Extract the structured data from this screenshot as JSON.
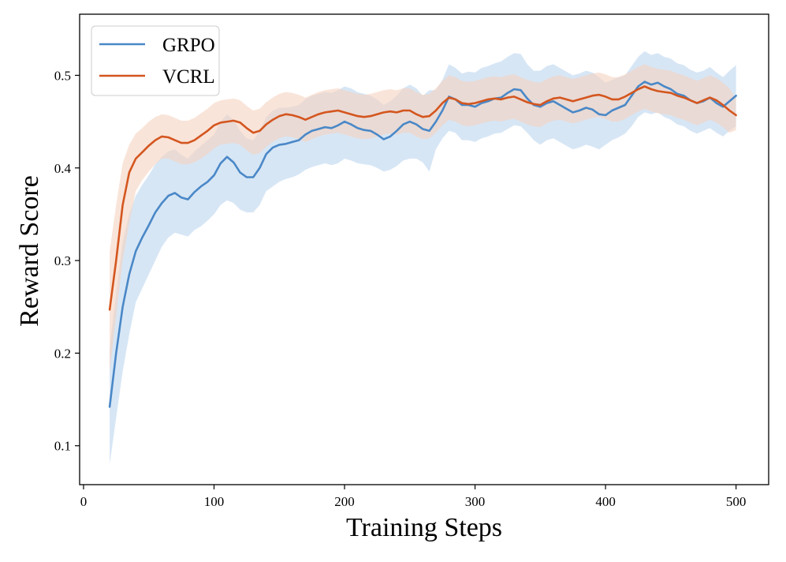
{
  "chart_data": {
    "type": "line",
    "title": "",
    "xlabel": "Training Steps",
    "ylabel": "Reward Score",
    "xlim": [
      -3,
      525
    ],
    "ylim": [
      0.058,
      0.566
    ],
    "xticks": [
      0,
      100,
      200,
      300,
      400,
      500
    ],
    "yticks": [
      0.1,
      0.2,
      0.3,
      0.4,
      0.5
    ],
    "xtick_labels": [
      "0",
      "100",
      "200",
      "300",
      "400",
      "500"
    ],
    "ytick_labels": [
      "0.1",
      "0.2",
      "0.3",
      "0.4",
      "0.5"
    ],
    "legend_position": "top-left",
    "grid": false,
    "series": [
      {
        "name": "GRPO",
        "color": "#4a88c7",
        "band_color": "#bcd5ee",
        "x": [
          20,
          25,
          30,
          35,
          40,
          45,
          50,
          55,
          60,
          65,
          70,
          75,
          80,
          85,
          90,
          95,
          100,
          105,
          110,
          115,
          120,
          125,
          130,
          135,
          140,
          145,
          150,
          155,
          160,
          165,
          170,
          175,
          180,
          185,
          190,
          195,
          200,
          205,
          210,
          215,
          220,
          225,
          230,
          235,
          240,
          245,
          250,
          255,
          260,
          265,
          270,
          275,
          280,
          285,
          290,
          295,
          300,
          305,
          310,
          315,
          320,
          325,
          330,
          335,
          340,
          345,
          350,
          355,
          360,
          365,
          370,
          375,
          380,
          385,
          390,
          395,
          400,
          405,
          410,
          415,
          420,
          425,
          430,
          435,
          440,
          445,
          450,
          455,
          460,
          465,
          470,
          475,
          480,
          485,
          490,
          495,
          500
        ],
        "y": [
          0.142,
          0.2,
          0.25,
          0.285,
          0.31,
          0.325,
          0.338,
          0.352,
          0.362,
          0.37,
          0.373,
          0.368,
          0.366,
          0.374,
          0.38,
          0.385,
          0.392,
          0.405,
          0.412,
          0.406,
          0.395,
          0.39,
          0.39,
          0.4,
          0.415,
          0.422,
          0.425,
          0.426,
          0.428,
          0.43,
          0.436,
          0.44,
          0.442,
          0.444,
          0.443,
          0.446,
          0.45,
          0.447,
          0.443,
          0.441,
          0.44,
          0.436,
          0.431,
          0.434,
          0.44,
          0.447,
          0.45,
          0.447,
          0.442,
          0.44,
          0.45,
          0.462,
          0.477,
          0.474,
          0.468,
          0.468,
          0.466,
          0.47,
          0.472,
          0.475,
          0.476,
          0.481,
          0.485,
          0.484,
          0.475,
          0.468,
          0.466,
          0.47,
          0.472,
          0.468,
          0.464,
          0.46,
          0.462,
          0.465,
          0.463,
          0.458,
          0.457,
          0.462,
          0.465,
          0.468,
          0.478,
          0.488,
          0.493,
          0.49,
          0.492,
          0.488,
          0.485,
          0.48,
          0.478,
          0.473,
          0.47,
          0.472,
          0.476,
          0.47,
          0.466,
          0.472,
          0.478
        ],
        "lower": [
          0.08,
          0.13,
          0.18,
          0.22,
          0.255,
          0.27,
          0.285,
          0.3,
          0.315,
          0.325,
          0.33,
          0.328,
          0.326,
          0.333,
          0.337,
          0.343,
          0.35,
          0.36,
          0.365,
          0.362,
          0.355,
          0.352,
          0.352,
          0.36,
          0.375,
          0.38,
          0.385,
          0.388,
          0.39,
          0.393,
          0.398,
          0.401,
          0.403,
          0.405,
          0.403,
          0.405,
          0.41,
          0.408,
          0.405,
          0.404,
          0.403,
          0.4,
          0.396,
          0.398,
          0.402,
          0.408,
          0.41,
          0.41,
          0.406,
          0.396,
          0.42,
          0.432,
          0.44,
          0.438,
          0.43,
          0.43,
          0.428,
          0.432,
          0.434,
          0.437,
          0.438,
          0.442,
          0.446,
          0.445,
          0.438,
          0.43,
          0.425,
          0.43,
          0.432,
          0.428,
          0.424,
          0.42,
          0.422,
          0.425,
          0.423,
          0.42,
          0.425,
          0.43,
          0.433,
          0.437,
          0.445,
          0.455,
          0.46,
          0.458,
          0.46,
          0.455,
          0.452,
          0.447,
          0.445,
          0.44,
          0.437,
          0.44,
          0.443,
          0.438,
          0.434,
          0.44,
          0.445
        ],
        "upper": [
          0.205,
          0.265,
          0.32,
          0.35,
          0.37,
          0.382,
          0.392,
          0.404,
          0.412,
          0.418,
          0.42,
          0.414,
          0.41,
          0.418,
          0.424,
          0.43,
          0.436,
          0.45,
          0.458,
          0.452,
          0.44,
          0.432,
          0.43,
          0.44,
          0.455,
          0.462,
          0.465,
          0.465,
          0.466,
          0.468,
          0.474,
          0.478,
          0.48,
          0.482,
          0.481,
          0.484,
          0.488,
          0.486,
          0.482,
          0.48,
          0.478,
          0.474,
          0.468,
          0.472,
          0.478,
          0.486,
          0.49,
          0.486,
          0.478,
          0.484,
          0.484,
          0.495,
          0.512,
          0.508,
          0.502,
          0.504,
          0.503,
          0.508,
          0.51,
          0.513,
          0.515,
          0.52,
          0.524,
          0.523,
          0.512,
          0.505,
          0.505,
          0.51,
          0.512,
          0.508,
          0.504,
          0.5,
          0.502,
          0.505,
          0.503,
          0.498,
          0.492,
          0.495,
          0.498,
          0.5,
          0.51,
          0.52,
          0.526,
          0.522,
          0.524,
          0.52,
          0.518,
          0.513,
          0.511,
          0.506,
          0.503,
          0.505,
          0.509,
          0.503,
          0.498,
          0.505,
          0.511
        ]
      },
      {
        "name": "VCRL",
        "color": "#d4561f",
        "band_color": "#f5d2bf",
        "x": [
          20,
          25,
          30,
          35,
          40,
          45,
          50,
          55,
          60,
          65,
          70,
          75,
          80,
          85,
          90,
          95,
          100,
          105,
          110,
          115,
          120,
          125,
          130,
          135,
          140,
          145,
          150,
          155,
          160,
          165,
          170,
          175,
          180,
          185,
          190,
          195,
          200,
          205,
          210,
          215,
          220,
          225,
          230,
          235,
          240,
          245,
          250,
          255,
          260,
          265,
          270,
          275,
          280,
          285,
          290,
          295,
          300,
          305,
          310,
          315,
          320,
          325,
          330,
          335,
          340,
          345,
          350,
          355,
          360,
          365,
          370,
          375,
          380,
          385,
          390,
          395,
          400,
          405,
          410,
          415,
          420,
          425,
          430,
          435,
          440,
          445,
          450,
          455,
          460,
          465,
          470,
          475,
          480,
          485,
          490,
          495,
          500
        ],
        "y": [
          0.247,
          0.3,
          0.36,
          0.395,
          0.41,
          0.417,
          0.424,
          0.43,
          0.434,
          0.433,
          0.43,
          0.427,
          0.427,
          0.43,
          0.435,
          0.44,
          0.446,
          0.449,
          0.45,
          0.451,
          0.449,
          0.443,
          0.438,
          0.44,
          0.447,
          0.452,
          0.456,
          0.458,
          0.457,
          0.455,
          0.452,
          0.455,
          0.458,
          0.46,
          0.461,
          0.462,
          0.46,
          0.458,
          0.456,
          0.455,
          0.456,
          0.458,
          0.46,
          0.461,
          0.46,
          0.462,
          0.462,
          0.458,
          0.455,
          0.456,
          0.462,
          0.47,
          0.476,
          0.474,
          0.47,
          0.469,
          0.47,
          0.472,
          0.474,
          0.475,
          0.474,
          0.476,
          0.477,
          0.474,
          0.471,
          0.469,
          0.468,
          0.472,
          0.475,
          0.476,
          0.474,
          0.472,
          0.474,
          0.476,
          0.478,
          0.479,
          0.477,
          0.474,
          0.474,
          0.477,
          0.481,
          0.485,
          0.488,
          0.485,
          0.483,
          0.482,
          0.481,
          0.478,
          0.476,
          0.473,
          0.47,
          0.473,
          0.476,
          0.473,
          0.468,
          0.462,
          0.457
        ],
        "lower": [
          0.18,
          0.24,
          0.3,
          0.34,
          0.375,
          0.387,
          0.396,
          0.404,
          0.41,
          0.41,
          0.407,
          0.404,
          0.404,
          0.406,
          0.41,
          0.415,
          0.421,
          0.425,
          0.426,
          0.427,
          0.425,
          0.419,
          0.414,
          0.416,
          0.423,
          0.428,
          0.432,
          0.434,
          0.433,
          0.431,
          0.428,
          0.431,
          0.434,
          0.436,
          0.437,
          0.438,
          0.436,
          0.434,
          0.432,
          0.431,
          0.432,
          0.434,
          0.436,
          0.437,
          0.436,
          0.438,
          0.438,
          0.434,
          0.431,
          0.432,
          0.438,
          0.446,
          0.452,
          0.45,
          0.446,
          0.445,
          0.446,
          0.448,
          0.45,
          0.451,
          0.45,
          0.452,
          0.453,
          0.45,
          0.447,
          0.445,
          0.444,
          0.448,
          0.451,
          0.452,
          0.45,
          0.448,
          0.45,
          0.452,
          0.454,
          0.455,
          0.453,
          0.45,
          0.45,
          0.453,
          0.457,
          0.461,
          0.464,
          0.461,
          0.459,
          0.458,
          0.457,
          0.454,
          0.452,
          0.449,
          0.446,
          0.449,
          0.452,
          0.449,
          0.444,
          0.438,
          0.441
        ],
        "upper": [
          0.31,
          0.36,
          0.405,
          0.425,
          0.437,
          0.443,
          0.45,
          0.455,
          0.458,
          0.457,
          0.454,
          0.451,
          0.451,
          0.454,
          0.459,
          0.464,
          0.47,
          0.473,
          0.474,
          0.475,
          0.473,
          0.467,
          0.462,
          0.464,
          0.471,
          0.476,
          0.48,
          0.482,
          0.481,
          0.479,
          0.476,
          0.479,
          0.482,
          0.484,
          0.485,
          0.486,
          0.484,
          0.482,
          0.48,
          0.479,
          0.48,
          0.482,
          0.484,
          0.485,
          0.484,
          0.486,
          0.486,
          0.482,
          0.479,
          0.48,
          0.486,
          0.494,
          0.5,
          0.498,
          0.494,
          0.493,
          0.494,
          0.496,
          0.498,
          0.499,
          0.498,
          0.5,
          0.501,
          0.498,
          0.495,
          0.493,
          0.492,
          0.496,
          0.499,
          0.5,
          0.498,
          0.496,
          0.498,
          0.5,
          0.502,
          0.503,
          0.501,
          0.498,
          0.498,
          0.501,
          0.505,
          0.509,
          0.512,
          0.509,
          0.507,
          0.506,
          0.505,
          0.502,
          0.5,
          0.497,
          0.494,
          0.497,
          0.5,
          0.497,
          0.492,
          0.486,
          0.475
        ]
      }
    ]
  }
}
